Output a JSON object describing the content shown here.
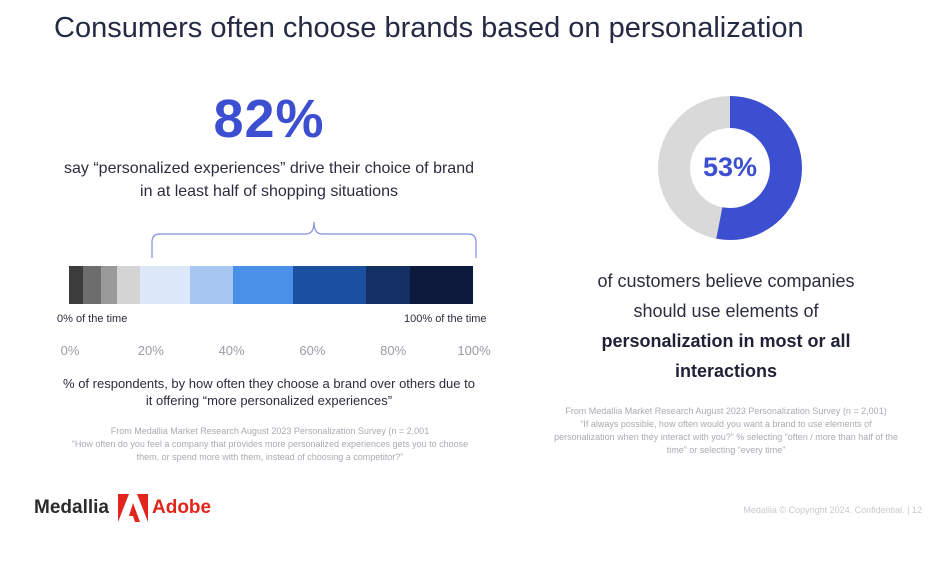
{
  "title": "Consumers often choose brands based on personalization",
  "left": {
    "stat": "82%",
    "stat_desc": "say “personalized experiences” drive their choice of brand in at least half of shopping situations",
    "bar": {
      "start_label": "0% of the time",
      "end_label": "100% of the time",
      "segments": [
        {
          "fraction": 0.035,
          "color": "#3c3c3c"
        },
        {
          "fraction": 0.045,
          "color": "#6d6d6d"
        },
        {
          "fraction": 0.04,
          "color": "#9a9a9a"
        },
        {
          "fraction": 0.055,
          "color": "#d4d4d4"
        },
        {
          "fraction": 0.125,
          "color": "#dce8f8"
        },
        {
          "fraction": 0.105,
          "color": "#a7c6f2"
        },
        {
          "fraction": 0.15,
          "color": "#4a8fe8"
        },
        {
          "fraction": 0.18,
          "color": "#1b4fa0"
        },
        {
          "fraction": 0.11,
          "color": "#132f64"
        },
        {
          "fraction": 0.155,
          "color": "#0d1a3e"
        }
      ]
    },
    "axis_ticks": [
      "0%",
      "20%",
      "40%",
      "60%",
      "80%",
      "100%"
    ],
    "axis_caption": "% of respondents, by how often they choose a brand over others due to it offering “more personalized experiences”",
    "source_line1": "From Medallia Market Research August 2023 Personalization Survey (n = 2,001",
    "source_line2": "“How often do you feel a company that provides more personalized experiences gets you to choose them, or spend more with them, instead of choosing a competitor?”"
  },
  "right": {
    "donut_value": 0.53,
    "donut_label": "53%",
    "donut_color": "#3d4fd1",
    "donut_rest_color": "#d9d9d9",
    "desc_line1": "of customers believe companies",
    "desc_line2": "should use elements of",
    "desc_bold1": "personalization in most or all",
    "desc_bold2": "interactions",
    "source_line1": "From Medallia Market Research August 2023 Personalization Survey (n = 2,001)",
    "source_line2": "“If always possible, how often would you want a brand to use elements of personalization when they interact with you?” % selecting “often / more than half of the time” or selecting “every time”"
  },
  "footer": {
    "logo_medallia": "Medallia",
    "logo_adobe": "Adobe",
    "copyright": "Medallia © Copyright 2024. Confidential. | 12"
  }
}
